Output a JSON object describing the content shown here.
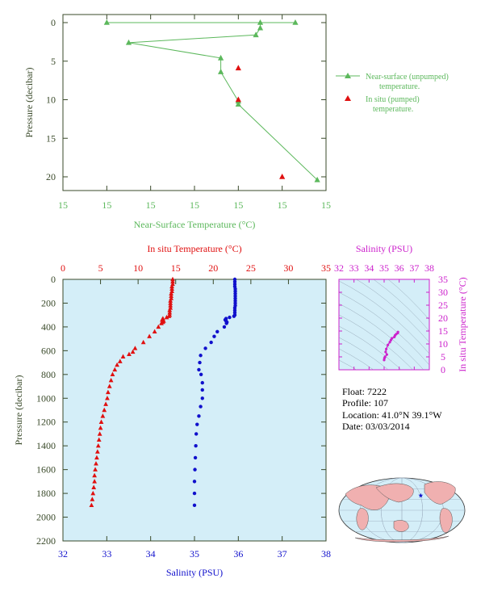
{
  "colors": {
    "axis": "#3a4a2a",
    "near_surface": "#5cb85c",
    "in_situ": "#e01010",
    "salinity": "#1010cc",
    "ts_panel": "#cc22cc",
    "panel_bg": "#d4eef8",
    "map_land": "#f0b0b0",
    "map_ocean": "#d4eef8"
  },
  "info": {
    "float": "Float:  7222",
    "profile": "Profile:  107",
    "location": "Location:  41.0°N  39.1°W",
    "date": "Date:  03/03/2014"
  },
  "footer_text": "",
  "chart_data": [
    {
      "id": "near_surface",
      "type": "line",
      "xlabel": "Near-Surface Temperature (°C)",
      "ylabel": "Pressure (decibar)",
      "x_tick_labels": [
        "15",
        "15",
        "15",
        "15",
        "15",
        "15",
        "15"
      ],
      "y_tick_labels": [
        "0",
        "5",
        "10",
        "15",
        "20"
      ],
      "ylim": [
        0,
        22.5
      ],
      "yticks": [
        0,
        5,
        10,
        15,
        20
      ],
      "x_axis_ticks_at": [
        0,
        1,
        2,
        3,
        4,
        5,
        6
      ],
      "series": [
        {
          "name": "Near-surface (unpumped) temperature.",
          "marker": "triangle",
          "connected": true,
          "points": [
            {
              "x": 1.0,
              "y": 0.0
            },
            {
              "x": 5.3,
              "y": 0.0
            },
            {
              "x": 4.5,
              "y": 0.0
            },
            {
              "x": 4.5,
              "y": 0.7
            },
            {
              "x": 4.4,
              "y": 1.6
            },
            {
              "x": 1.5,
              "y": 2.6
            },
            {
              "x": 3.6,
              "y": 4.6
            },
            {
              "x": 3.6,
              "y": 6.4
            },
            {
              "x": 4.0,
              "y": 10.2
            },
            {
              "x": 4.0,
              "y": 10.6
            },
            {
              "x": 5.8,
              "y": 20.4
            }
          ]
        },
        {
          "name": "In situ (pumped) temperature.",
          "marker": "triangle",
          "connected": false,
          "points": [
            {
              "x": 4.0,
              "y": 5.9
            },
            {
              "x": 4.0,
              "y": 10.0
            },
            {
              "x": 5.0,
              "y": 20.0
            }
          ]
        }
      ]
    },
    {
      "id": "profile",
      "type": "scatter",
      "top_xlabel": "In situ Temperature (°C)",
      "bottom_xlabel": "Salinity (PSU)",
      "ylabel": "Pressure (decibar)",
      "temperature_xlim": [
        0,
        35
      ],
      "salinity_xlim": [
        32,
        38
      ],
      "ylim": [
        0,
        2200
      ],
      "temperature_ticks": [
        "0",
        "5",
        "10",
        "15",
        "20",
        "25",
        "30",
        "35"
      ],
      "salinity_ticks": [
        "32",
        "33",
        "34",
        "35",
        "36",
        "37",
        "38"
      ],
      "pressure_ticks": [
        "0",
        "200",
        "400",
        "600",
        "800",
        "1000",
        "1200",
        "1400",
        "1600",
        "1800",
        "2000",
        "2200"
      ],
      "temperature_series": {
        "name": "In situ Temperature (°C)",
        "marker": "triangle",
        "points": [
          {
            "t": 14.6,
            "p": 0
          },
          {
            "t": 14.6,
            "p": 20
          },
          {
            "t": 14.6,
            "p": 40
          },
          {
            "t": 14.5,
            "p": 60
          },
          {
            "t": 14.5,
            "p": 80
          },
          {
            "t": 14.5,
            "p": 100
          },
          {
            "t": 14.4,
            "p": 120
          },
          {
            "t": 14.4,
            "p": 140
          },
          {
            "t": 14.4,
            "p": 160
          },
          {
            "t": 14.3,
            "p": 180
          },
          {
            "t": 14.3,
            "p": 200
          },
          {
            "t": 14.3,
            "p": 220
          },
          {
            "t": 14.3,
            "p": 240
          },
          {
            "t": 14.2,
            "p": 260
          },
          {
            "t": 14.2,
            "p": 280
          },
          {
            "t": 14.2,
            "p": 300
          },
          {
            "t": 14.1,
            "p": 310
          },
          {
            "t": 13.8,
            "p": 320
          },
          {
            "t": 13.3,
            "p": 330
          },
          {
            "t": 13.2,
            "p": 340
          },
          {
            "t": 13.4,
            "p": 350
          },
          {
            "t": 13.3,
            "p": 360
          },
          {
            "t": 13.1,
            "p": 370
          },
          {
            "t": 12.7,
            "p": 400
          },
          {
            "t": 12.2,
            "p": 440
          },
          {
            "t": 11.5,
            "p": 480
          },
          {
            "t": 10.7,
            "p": 530
          },
          {
            "t": 9.6,
            "p": 580
          },
          {
            "t": 9.3,
            "p": 610
          },
          {
            "t": 8.8,
            "p": 630
          },
          {
            "t": 8.0,
            "p": 650
          },
          {
            "t": 7.6,
            "p": 690
          },
          {
            "t": 7.2,
            "p": 720
          },
          {
            "t": 6.9,
            "p": 760
          },
          {
            "t": 6.6,
            "p": 800
          },
          {
            "t": 6.4,
            "p": 850
          },
          {
            "t": 6.2,
            "p": 900
          },
          {
            "t": 6.0,
            "p": 950
          },
          {
            "t": 5.9,
            "p": 1000
          },
          {
            "t": 5.7,
            "p": 1050
          },
          {
            "t": 5.5,
            "p": 1100
          },
          {
            "t": 5.3,
            "p": 1150
          },
          {
            "t": 5.1,
            "p": 1200
          },
          {
            "t": 5.0,
            "p": 1250
          },
          {
            "t": 4.9,
            "p": 1300
          },
          {
            "t": 4.8,
            "p": 1350
          },
          {
            "t": 4.7,
            "p": 1400
          },
          {
            "t": 4.6,
            "p": 1450
          },
          {
            "t": 4.5,
            "p": 1500
          },
          {
            "t": 4.4,
            "p": 1550
          },
          {
            "t": 4.3,
            "p": 1600
          },
          {
            "t": 4.2,
            "p": 1650
          },
          {
            "t": 4.2,
            "p": 1700
          },
          {
            "t": 4.1,
            "p": 1750
          },
          {
            "t": 4.0,
            "p": 1800
          },
          {
            "t": 3.9,
            "p": 1850
          },
          {
            "t": 3.8,
            "p": 1900
          }
        ]
      },
      "salinity_series": {
        "name": "Salinity (PSU)",
        "marker": "circle",
        "points": [
          {
            "s": 35.92,
            "p": 0
          },
          {
            "s": 35.92,
            "p": 20
          },
          {
            "s": 35.92,
            "p": 40
          },
          {
            "s": 35.92,
            "p": 60
          },
          {
            "s": 35.93,
            "p": 80
          },
          {
            "s": 35.93,
            "p": 100
          },
          {
            "s": 35.93,
            "p": 120
          },
          {
            "s": 35.93,
            "p": 140
          },
          {
            "s": 35.93,
            "p": 160
          },
          {
            "s": 35.93,
            "p": 180
          },
          {
            "s": 35.93,
            "p": 200
          },
          {
            "s": 35.93,
            "p": 220
          },
          {
            "s": 35.92,
            "p": 240
          },
          {
            "s": 35.92,
            "p": 260
          },
          {
            "s": 35.92,
            "p": 280
          },
          {
            "s": 35.92,
            "p": 300
          },
          {
            "s": 35.9,
            "p": 310
          },
          {
            "s": 35.8,
            "p": 320
          },
          {
            "s": 35.72,
            "p": 330
          },
          {
            "s": 35.7,
            "p": 340
          },
          {
            "s": 35.72,
            "p": 350
          },
          {
            "s": 35.74,
            "p": 360
          },
          {
            "s": 35.73,
            "p": 370
          },
          {
            "s": 35.68,
            "p": 400
          },
          {
            "s": 35.52,
            "p": 440
          },
          {
            "s": 35.45,
            "p": 480
          },
          {
            "s": 35.38,
            "p": 530
          },
          {
            "s": 35.25,
            "p": 580
          },
          {
            "s": 35.14,
            "p": 640
          },
          {
            "s": 35.12,
            "p": 700
          },
          {
            "s": 35.1,
            "p": 760
          },
          {
            "s": 35.15,
            "p": 800
          },
          {
            "s": 35.18,
            "p": 870
          },
          {
            "s": 35.18,
            "p": 930
          },
          {
            "s": 35.18,
            "p": 1000
          },
          {
            "s": 35.14,
            "p": 1070
          },
          {
            "s": 35.1,
            "p": 1150
          },
          {
            "s": 35.06,
            "p": 1220
          },
          {
            "s": 35.04,
            "p": 1300
          },
          {
            "s": 35.03,
            "p": 1400
          },
          {
            "s": 35.02,
            "p": 1500
          },
          {
            "s": 35.01,
            "p": 1600
          },
          {
            "s": 35.0,
            "p": 1700
          },
          {
            "s": 35.0,
            "p": 1800
          },
          {
            "s": 35.0,
            "p": 1900
          }
        ]
      }
    },
    {
      "id": "ts_diagram",
      "type": "scatter",
      "xlabel": "Salinity (PSU)",
      "ylabel": "In situ Temperature (°C)",
      "xlim": [
        32,
        38
      ],
      "ylim": [
        0,
        35
      ],
      "x_ticks": [
        "32",
        "33",
        "34",
        "35",
        "36",
        "37",
        "38"
      ],
      "y_ticks": [
        "0",
        "5",
        "10",
        "15",
        "20",
        "25",
        "30",
        "35"
      ],
      "grid": true,
      "points": [
        {
          "s": 35.92,
          "t": 14.6
        },
        {
          "s": 35.9,
          "t": 14.2
        },
        {
          "s": 35.8,
          "t": 13.8
        },
        {
          "s": 35.72,
          "t": 13.3
        },
        {
          "s": 35.68,
          "t": 12.7
        },
        {
          "s": 35.52,
          "t": 12.2
        },
        {
          "s": 35.45,
          "t": 11.5
        },
        {
          "s": 35.38,
          "t": 10.7
        },
        {
          "s": 35.25,
          "t": 9.6
        },
        {
          "s": 35.14,
          "t": 8.0
        },
        {
          "s": 35.1,
          "t": 6.9
        },
        {
          "s": 35.18,
          "t": 5.9
        },
        {
          "s": 35.06,
          "t": 5.0
        },
        {
          "s": 35.02,
          "t": 4.5
        },
        {
          "s": 35.0,
          "t": 3.8
        }
      ]
    }
  ],
  "map": {
    "float_marker": {
      "lat": 41.0,
      "lon": -39.1
    }
  }
}
